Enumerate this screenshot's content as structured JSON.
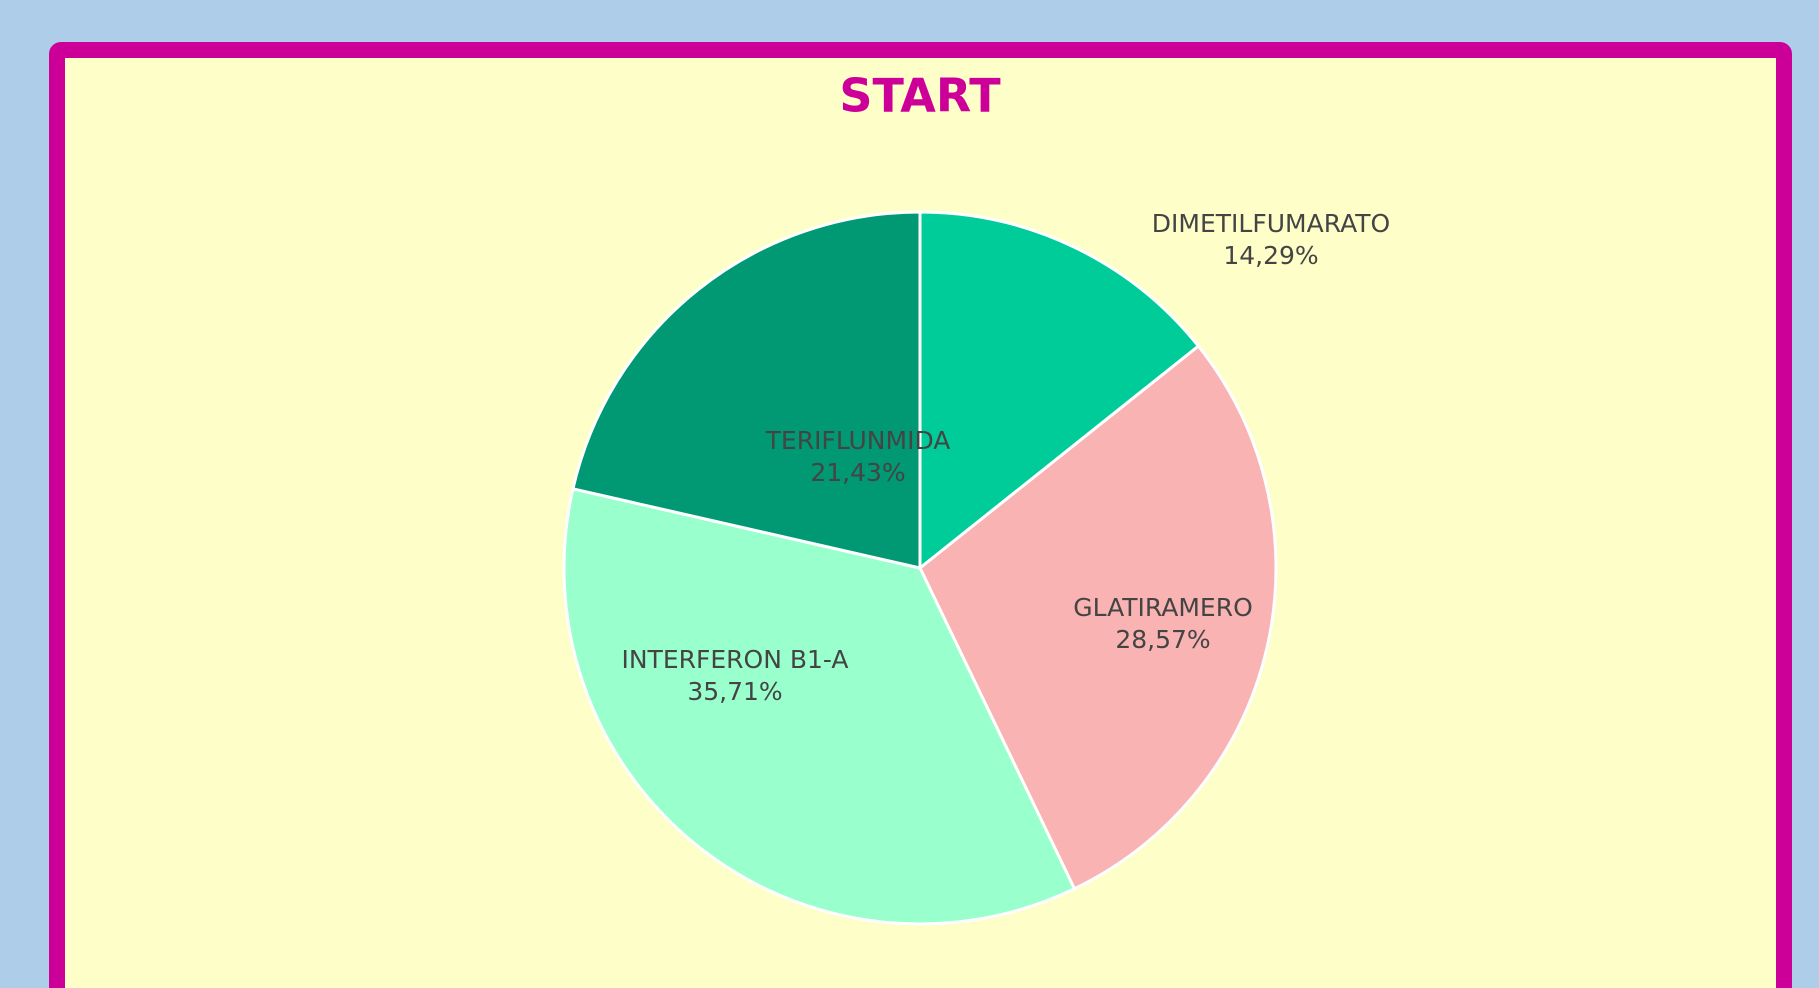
{
  "chart_data": {
    "type": "pie",
    "title": "START",
    "categories": [
      "DIMETILFUMARATO",
      "GLATIRAMERO",
      "INTERFERON B1-A",
      "TERIFLUNMIDA"
    ],
    "values": [
      14.29,
      28.57,
      35.71,
      21.43
    ],
    "value_labels": [
      "14,29%",
      "28,57%",
      "35,71%",
      "21,43%"
    ],
    "colors": [
      "#00cc99",
      "#f9b3b3",
      "#99ffcc",
      "#009973"
    ]
  }
}
